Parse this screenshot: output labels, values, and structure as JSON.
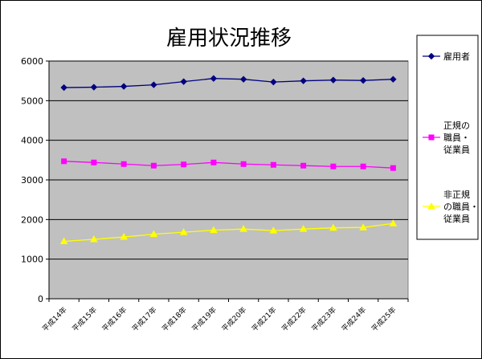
{
  "chart_data": {
    "type": "line",
    "title": "雇用状況推移",
    "categories": [
      "平成14年",
      "平成15年",
      "平成16年",
      "平成17年",
      "平成18年",
      "平成19年",
      "平成20年",
      "平成21年",
      "平成22年",
      "平成23年",
      "平成24年",
      "平成25年"
    ],
    "ylim": [
      0,
      6000
    ],
    "yticks": [
      0,
      1000,
      2000,
      3000,
      4000,
      5000,
      6000
    ],
    "grid": true,
    "plot_background": "#c0c0c0",
    "legend_position": "right",
    "series": [
      {
        "name": "雇用者",
        "legend_lines": [
          "雇用者"
        ],
        "color": "#000080",
        "marker": "diamond",
        "values": [
          5330,
          5340,
          5360,
          5400,
          5480,
          5560,
          5540,
          5470,
          5500,
          5520,
          5510,
          5540
        ]
      },
      {
        "name": "正規の職員・従業員",
        "legend_lines": [
          "正規の",
          "職員・",
          "従業員"
        ],
        "color": "#ff00ff",
        "marker": "square",
        "values": [
          3470,
          3440,
          3400,
          3360,
          3390,
          3440,
          3400,
          3380,
          3360,
          3340,
          3340,
          3300
        ]
      },
      {
        "name": "非正規の職員・従業員",
        "legend_lines": [
          "非正規",
          "の職員・",
          "従業員"
        ],
        "color": "#ffff00",
        "marker": "triangle",
        "values": [
          1450,
          1500,
          1560,
          1630,
          1680,
          1730,
          1760,
          1720,
          1760,
          1790,
          1800,
          1900
        ]
      }
    ]
  }
}
